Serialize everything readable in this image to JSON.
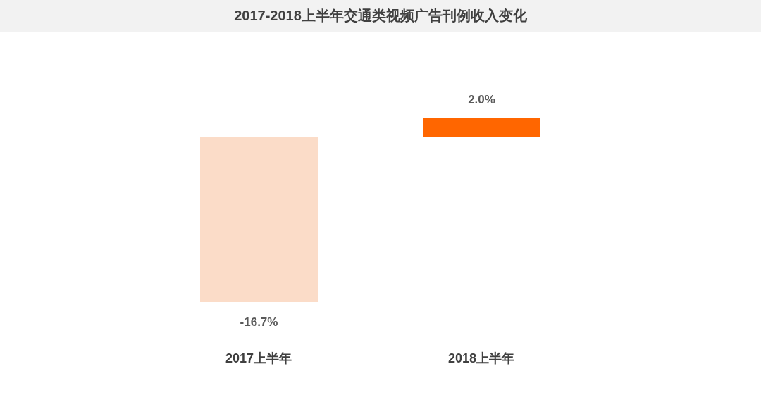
{
  "chart_data": {
    "type": "bar",
    "title": "2017-2018上半年交通类视频广告刊例收入变化",
    "categories": [
      "2017上半年",
      "2018上半年"
    ],
    "values": [
      -16.7,
      2.0
    ],
    "colors": [
      "#fbdcc8",
      "#ff6600"
    ],
    "value_labels": [
      "-16.7%",
      "2.0%"
    ],
    "grid": false,
    "legend": false
  }
}
